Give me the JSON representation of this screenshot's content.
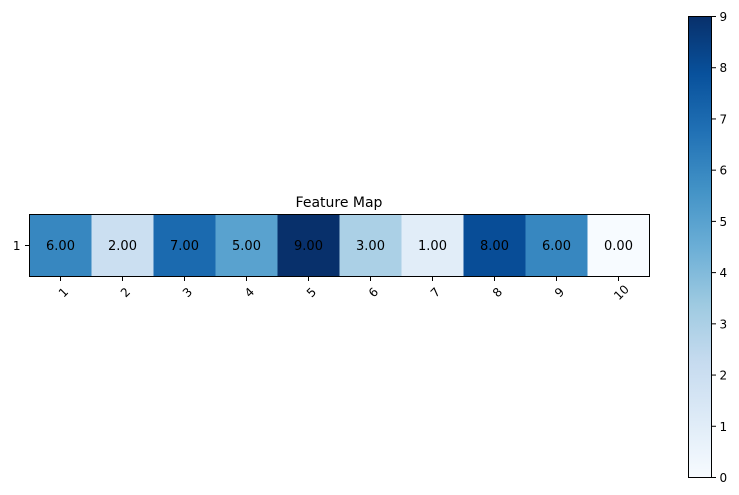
{
  "chart_data": {
    "type": "heatmap",
    "title": "Feature Map",
    "x_categories": [
      "1",
      "2",
      "3",
      "4",
      "5",
      "6",
      "7",
      "8",
      "9",
      "10"
    ],
    "y_categories": [
      "1"
    ],
    "values": [
      [
        6.0,
        2.0,
        7.0,
        5.0,
        9.0,
        3.0,
        1.0,
        8.0,
        6.0,
        0.0
      ]
    ],
    "cell_labels": [
      [
        "6.00",
        "2.00",
        "7.00",
        "5.00",
        "9.00",
        "3.00",
        "1.00",
        "8.00",
        "6.00",
        "0.00"
      ]
    ],
    "colormap": "Blues",
    "colormap_stops": [
      "#f7fbff",
      "#deebf7",
      "#c6dbef",
      "#9ecae1",
      "#6baed6",
      "#4292c6",
      "#2171b5",
      "#08519c",
      "#08306b"
    ],
    "value_range": [
      0,
      9
    ],
    "colorbar": {
      "ticks": [
        "0",
        "1",
        "2",
        "3",
        "4",
        "5",
        "6",
        "7",
        "8",
        "9"
      ],
      "position": "right"
    },
    "xtick_rotation_deg": 45,
    "grid": false
  }
}
